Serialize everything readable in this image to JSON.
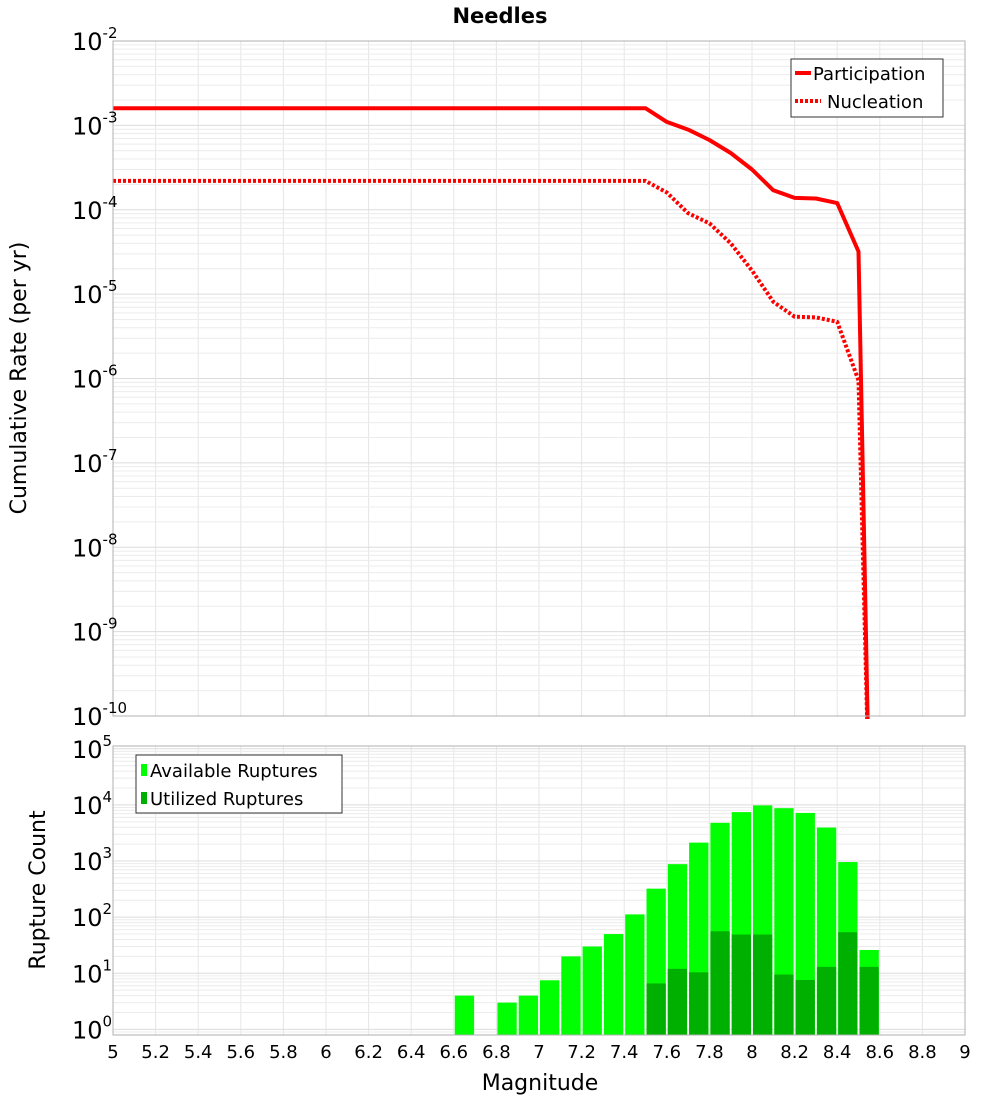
{
  "chart_data": [
    {
      "type": "line",
      "title": "Needles",
      "xlabel": "",
      "ylabel": "Cumulative Rate (per yr)",
      "xlim": [
        5,
        9
      ],
      "yscale": "log",
      "ylim": [
        1e-10,
        0.01
      ],
      "ytick_exponents": [
        -2,
        -3,
        -4,
        -5,
        -6,
        -7,
        -8,
        -9,
        -10
      ],
      "grid": true,
      "legend_position": "top-right",
      "series": [
        {
          "name": "Participation",
          "style": "solid",
          "color": "#ff0000",
          "x": [
            5.0,
            7.5,
            7.6,
            7.7,
            7.8,
            7.9,
            8.0,
            8.1,
            8.2,
            8.3,
            8.4,
            8.5,
            8.55
          ],
          "y": [
            0.0016,
            0.0016,
            0.0011,
            0.00089,
            0.00067,
            0.00047,
            0.0003,
            0.00017,
            0.000138,
            0.000136,
            0.00012,
            3.2e-05,
            1e-11
          ]
        },
        {
          "name": "Nucleation",
          "style": "dotted",
          "color": "#ff0000",
          "x": [
            5.0,
            7.5,
            7.6,
            7.7,
            7.8,
            7.9,
            8.0,
            8.1,
            8.2,
            8.3,
            8.4,
            8.5,
            8.55
          ],
          "y": [
            0.00022,
            0.00022,
            0.00016,
            9.1e-05,
            6.9e-05,
            4e-05,
            1.9e-05,
            8.1e-06,
            5.4e-06,
            5.3e-06,
            4.7e-06,
            9.5e-07,
            1e-11
          ]
        }
      ]
    },
    {
      "type": "bar",
      "xlabel": "Magnitude",
      "ylabel": "Rupture Count",
      "xlim": [
        5,
        9
      ],
      "xticks": [
        "5",
        "5.2",
        "5.4",
        "5.6",
        "5.8",
        "6",
        "6.2",
        "6.4",
        "6.6",
        "6.8",
        "7",
        "7.2",
        "7.4",
        "7.6",
        "7.8",
        "8",
        "8.2",
        "8.4",
        "8.6",
        "8.8",
        "9"
      ],
      "yscale": "log",
      "ylim": [
        0.8,
        100000.0
      ],
      "ytick_exponents": [
        0,
        1,
        2,
        3,
        4,
        5
      ],
      "grid": true,
      "legend_position": "top-left",
      "bin_width": 0.1,
      "series": [
        {
          "name": "Available Ruptures",
          "color": "#00ff00",
          "x": [
            6.65,
            6.85,
            6.95,
            7.05,
            7.15,
            7.25,
            7.35,
            7.45,
            7.55,
            7.65,
            7.75,
            7.85,
            7.95,
            8.05,
            8.15,
            8.25,
            8.35,
            8.45,
            8.55
          ],
          "values": [
            4,
            3,
            4,
            7.5,
            20,
            30,
            50,
            112,
            322,
            880,
            2130,
            4800,
            7450,
            9800,
            8750,
            7200,
            3950,
            960,
            26
          ]
        },
        {
          "name": "Utilized Ruptures",
          "color": "#00b000",
          "x": [
            7.55,
            7.65,
            7.75,
            7.85,
            7.95,
            8.05,
            8.15,
            8.25,
            8.35,
            8.45,
            8.55
          ],
          "values": [
            6.6,
            12,
            10.4,
            56,
            49,
            49,
            9.5,
            7.6,
            13,
            54,
            13
          ]
        }
      ]
    }
  ]
}
